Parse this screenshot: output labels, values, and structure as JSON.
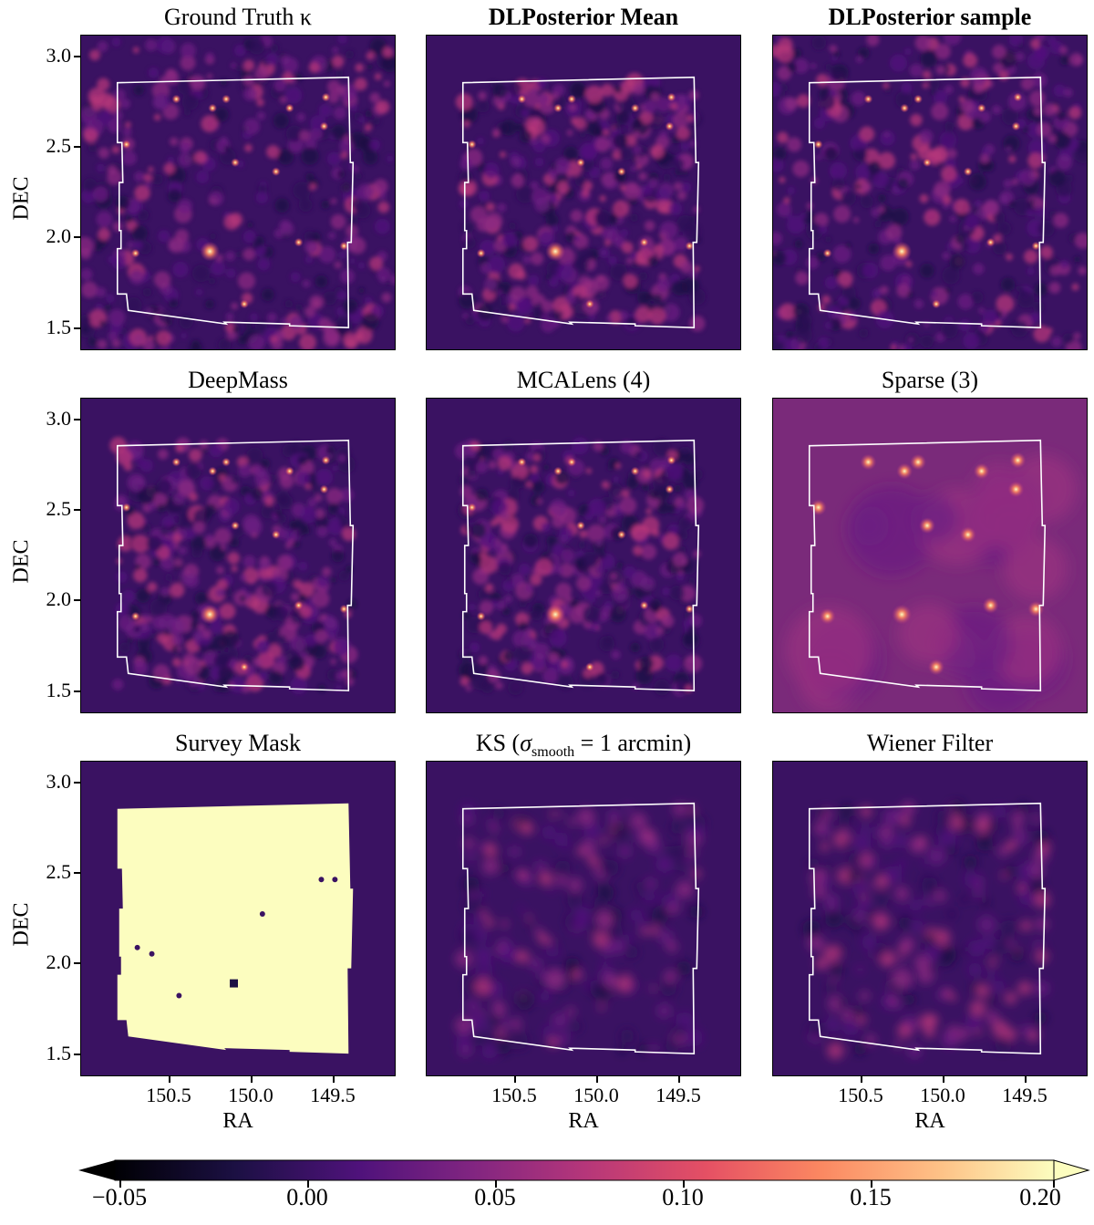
{
  "figure": {
    "panels": [
      {
        "title": "Ground Truth κ",
        "bold": false,
        "kind": "truth"
      },
      {
        "title": "DLPosterior Mean",
        "bold": true,
        "kind": "mean"
      },
      {
        "title": "DLPosterior sample",
        "bold": true,
        "kind": "sample"
      },
      {
        "title": "DeepMass",
        "bold": false,
        "kind": "deepmass"
      },
      {
        "title": "MCALens (4)",
        "bold": false,
        "kind": "mcalens"
      },
      {
        "title": "Sparse (3)",
        "bold": false,
        "kind": "sparse"
      },
      {
        "title": "Survey Mask",
        "bold": false,
        "kind": "mask"
      },
      {
        "title": "KS (σsmooth = 1 arcmin)",
        "bold": false,
        "kind": "ks"
      },
      {
        "title": "Wiener Filter",
        "bold": false,
        "kind": "wiener"
      }
    ],
    "ks_title": {
      "prefix": "KS (",
      "sigma": "σ",
      "sub": "smooth",
      "suffix": " = 1 arcmin)"
    },
    "y_axis": {
      "label": "DEC",
      "ticks": [
        "3.0",
        "2.5",
        "2.0",
        "1.5"
      ]
    },
    "x_axis": {
      "label": "RA",
      "ticks": [
        "150.5",
        "150.0",
        "149.5"
      ]
    },
    "colorbar": {
      "ticks": [
        "−0.05",
        "0.00",
        "0.05",
        "0.10",
        "0.15",
        "0.20"
      ],
      "range": [
        -0.05,
        0.2
      ],
      "extend_min": "black",
      "extend_max": "#fcfdbf"
    },
    "colors": {
      "background": "#3a1262",
      "mask_fill": "#fcfdbf",
      "outline": "#ffffff",
      "sparse_bg": "#7a2a7a"
    }
  }
}
